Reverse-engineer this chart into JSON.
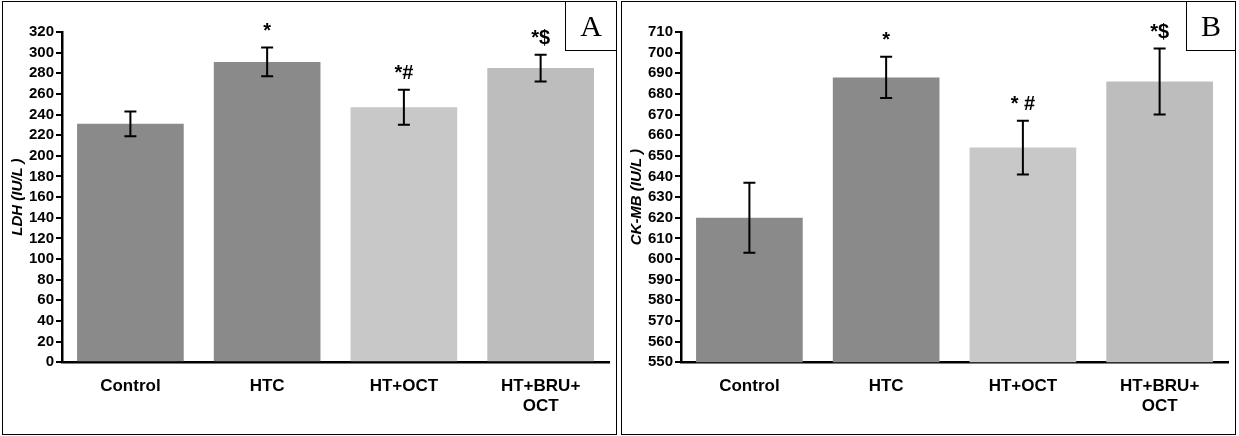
{
  "chart_data": [
    {
      "type": "bar",
      "title": "A",
      "categories": [
        "Control",
        "HTC",
        "HT+OCT",
        "HT+BRU+OCT"
      ],
      "values": [
        231,
        291,
        247,
        285
      ],
      "errors": [
        12,
        14,
        17,
        13
      ],
      "colors": [
        "#8a8a8a",
        "#8a8a8a",
        "#c8c8c8",
        "#bdbdbd"
      ],
      "ylabel": "LDH (IU/L )",
      "ylim": [
        0,
        320
      ],
      "yticks": [
        0,
        20,
        40,
        60,
        80,
        100,
        120,
        140,
        160,
        180,
        200,
        220,
        240,
        260,
        280,
        300,
        320
      ],
      "grid": false,
      "legend": false,
      "annotations": [
        "*",
        "*#",
        "*$"
      ]
    },
    {
      "type": "bar",
      "title": "B",
      "categories": [
        "Control",
        "HTC",
        "HT+OCT",
        "HT+BRU+OCT"
      ],
      "values": [
        620,
        688,
        654,
        686
      ],
      "errors": [
        17,
        10,
        13,
        16
      ],
      "colors": [
        "#8a8a8a",
        "#8a8a8a",
        "#c8c8c8",
        "#bdbdbd"
      ],
      "ylabel": "CK-MB (IU/L )",
      "ylim": [
        550,
        710
      ],
      "yticks": [
        550,
        560,
        570,
        580,
        590,
        600,
        610,
        620,
        630,
        640,
        650,
        660,
        670,
        680,
        690,
        700,
        710
      ],
      "grid": false,
      "legend": false,
      "annotations": [
        "*",
        "* #",
        "*$"
      ]
    }
  ]
}
